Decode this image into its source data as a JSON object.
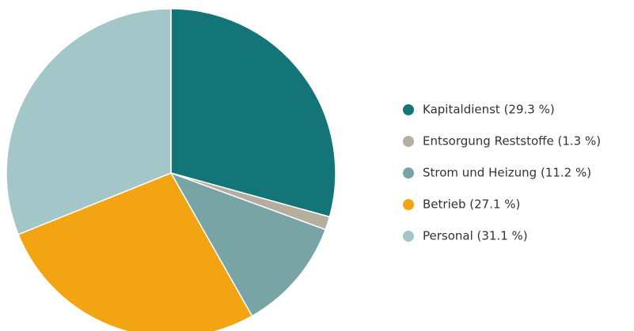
{
  "chart_data": {
    "type": "pie",
    "categories": [
      "Kapitaldienst (29.3 %)",
      "Entsorgung Reststoffe (1.3 %)",
      "Strom und Heizung (11.2 %)",
      "Betrieb (27.1 %)",
      "Personal (31.1 %)"
    ],
    "values": [
      29.3,
      1.3,
      11.2,
      27.1,
      31.1
    ],
    "colors": [
      "#137577",
      "#b5ae9f",
      "#79a4a5",
      "#f2a413",
      "#a3c7c9"
    ],
    "legend": "right"
  }
}
